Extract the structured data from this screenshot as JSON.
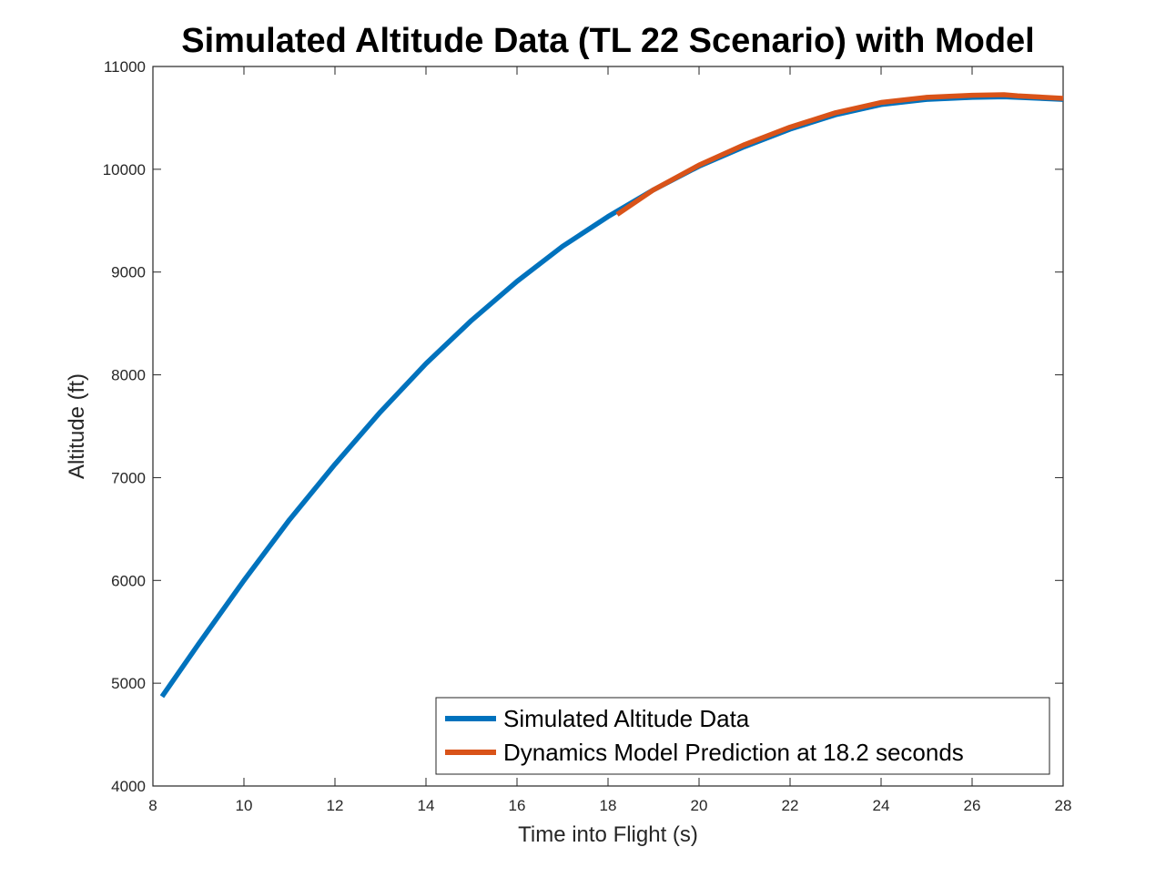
{
  "chart_data": {
    "type": "line",
    "title": "Simulated Altitude Data (TL 22 Scenario) with Model",
    "xlabel": "Time into Flight (s)",
    "ylabel": "Altitude (ft)",
    "xlim": [
      8,
      28
    ],
    "ylim": [
      4000,
      11000
    ],
    "xticks": [
      "8",
      "10",
      "12",
      "14",
      "16",
      "18",
      "20",
      "22",
      "24",
      "26",
      "28"
    ],
    "yticks": [
      "4000",
      "5000",
      "6000",
      "7000",
      "8000",
      "9000",
      "10000",
      "11000"
    ],
    "grid": false,
    "legend_position": "bottom-right",
    "series": [
      {
        "name": "Simulated Altitude Data",
        "color": "#0072BD",
        "x": [
          8.2,
          9,
          10,
          11,
          12,
          13,
          14,
          15,
          16,
          17,
          18,
          19,
          20,
          21,
          22,
          23,
          24,
          25,
          26,
          26.7,
          27,
          28
        ],
        "y": [
          4870,
          5380,
          6000,
          6590,
          7130,
          7640,
          8110,
          8530,
          8910,
          9250,
          9540,
          9800,
          10030,
          10220,
          10390,
          10530,
          10630,
          10680,
          10700,
          10705,
          10700,
          10680
        ]
      },
      {
        "name": "Dynamics Model Prediction at 18.2 seconds",
        "color": "#D95319",
        "x": [
          18.2,
          19,
          20,
          21,
          22,
          23,
          24,
          25,
          26,
          26.7,
          27,
          28
        ],
        "y": [
          9560,
          9800,
          10040,
          10240,
          10410,
          10550,
          10650,
          10700,
          10720,
          10725,
          10715,
          10690
        ]
      }
    ]
  }
}
